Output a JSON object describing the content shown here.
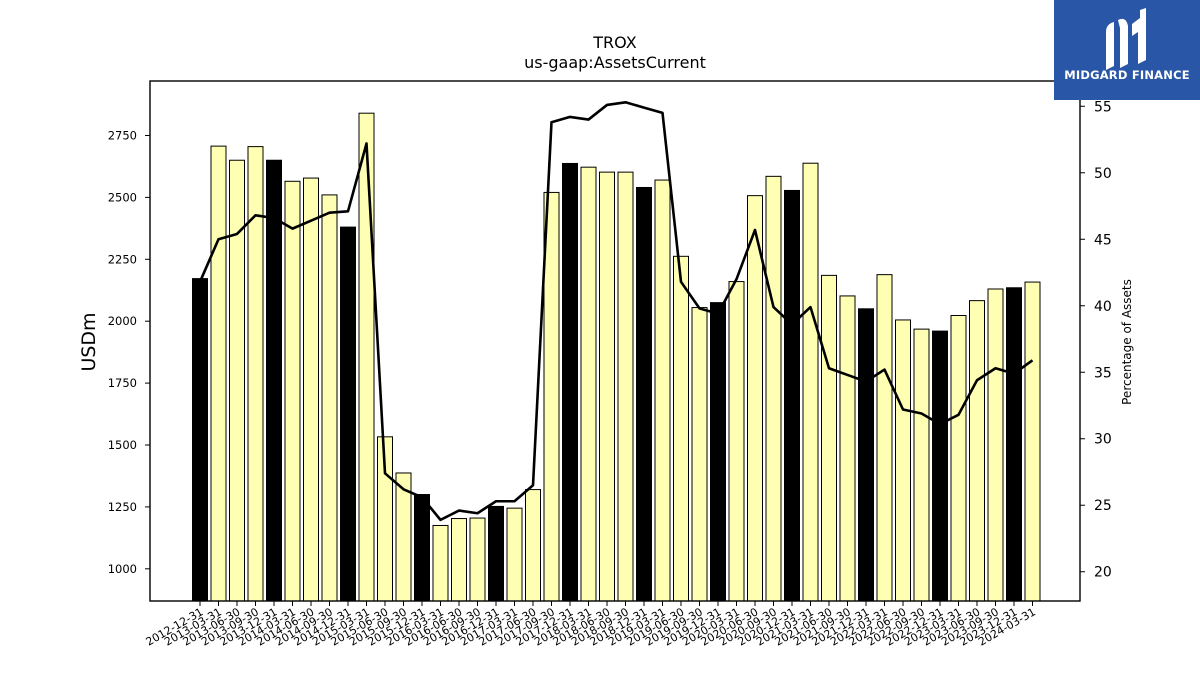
{
  "brand": {
    "name": "MIDGARD FINANCE",
    "logo_icon": "midgard-m-logo-icon",
    "bg_color": "#2a56a8"
  },
  "chart_data": {
    "type": "bar",
    "title": "TROX",
    "subtitle": "us-gaap:AssetsCurrent",
    "ylabel": "USDm",
    "y2label": "Percentage of Assets",
    "ylim": [
      870,
      2970
    ],
    "y2lim": [
      17.8,
      56.9
    ],
    "yticks": [
      1000,
      1250,
      1500,
      1750,
      2000,
      2250,
      2500,
      2750
    ],
    "y2ticks": [
      20,
      25,
      30,
      35,
      40,
      45,
      50,
      55
    ],
    "grid": false,
    "colors": {
      "bar_normal": "#ffffb3",
      "bar_highlight": "#000000",
      "line": "#000000"
    },
    "categories": [
      "2012-12-31",
      "2013-03-31",
      "2013-06-30",
      "2013-09-30",
      "2013-12-31",
      "2014-03-31",
      "2014-06-30",
      "2014-09-30",
      "2014-12-31",
      "2015-03-31",
      "2015-06-30",
      "2015-09-30",
      "2015-12-31",
      "2016-03-31",
      "2016-06-30",
      "2016-09-30",
      "2016-12-31",
      "2017-03-31",
      "2017-06-30",
      "2017-09-30",
      "2017-12-31",
      "2018-03-31",
      "2018-06-30",
      "2018-09-30",
      "2018-12-31",
      "2019-03-31",
      "2019-06-30",
      "2019-09-30",
      "2019-12-31",
      "2020-03-31",
      "2020-06-30",
      "2020-09-30",
      "2020-12-31",
      "2021-03-31",
      "2021-06-30",
      "2021-09-30",
      "2021-12-31",
      "2022-03-31",
      "2022-06-30",
      "2022-09-30",
      "2022-12-31",
      "2023-03-31",
      "2023-06-30",
      "2023-09-30",
      "2023-12-31",
      "2024-03-31"
    ],
    "series": [
      {
        "kind": "bar",
        "values": [
          2172,
          2707,
          2650,
          2705,
          2650,
          2565,
          2578,
          2510,
          2380,
          2840,
          1533,
          1387,
          1300,
          1175,
          1203,
          1205,
          1252,
          1245,
          1320,
          2520,
          2637,
          2622,
          2602,
          2602,
          2540,
          2570,
          2262,
          2055,
          2075,
          2160,
          2507,
          2585,
          2528,
          2638,
          2185,
          2102,
          2050,
          2188,
          2005,
          1968,
          1960,
          2023,
          2083,
          2130,
          2135,
          2158
        ],
        "highlight": [
          true,
          false,
          false,
          false,
          true,
          false,
          false,
          false,
          true,
          false,
          false,
          false,
          true,
          false,
          false,
          false,
          true,
          false,
          false,
          false,
          true,
          false,
          false,
          false,
          true,
          false,
          false,
          false,
          true,
          false,
          false,
          false,
          true,
          false,
          false,
          false,
          true,
          false,
          false,
          false,
          true,
          false,
          false,
          false,
          true,
          false
        ]
      },
      {
        "kind": "line",
        "axis": "right",
        "values": [
          41.8,
          45.0,
          45.4,
          46.8,
          46.6,
          45.8,
          46.4,
          47.0,
          47.1,
          52.2,
          27.4,
          26.2,
          25.6,
          23.9,
          24.6,
          24.4,
          25.3,
          25.3,
          26.5,
          53.8,
          54.2,
          54.0,
          55.1,
          55.3,
          54.9,
          54.5,
          41.8,
          39.8,
          39.4,
          42.0,
          45.7,
          39.9,
          38.6,
          39.9,
          35.3,
          34.8,
          34.3,
          35.2,
          32.2,
          31.9,
          31.1,
          31.8,
          34.4,
          35.3,
          34.9,
          35.9
        ]
      }
    ]
  }
}
